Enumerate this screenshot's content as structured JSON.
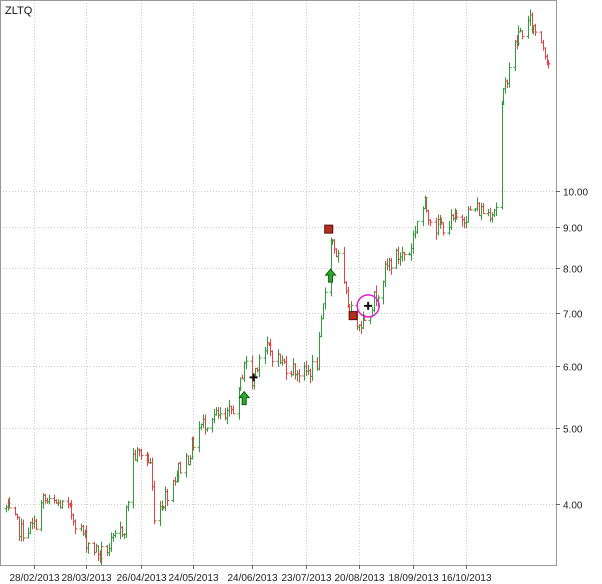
{
  "chart_data": {
    "type": "ohlc",
    "ticker": "ZLTQ",
    "y_scale": "log",
    "ylim": [
      3.35,
      17.5
    ],
    "y_ticks": [
      "4.00",
      "5.00",
      "6.00",
      "7.00",
      "8.00",
      "9.00",
      "10.00"
    ],
    "x_ticks": [
      "28/02/2013",
      "28/03/2013",
      "26/04/2013",
      "24/05/2013",
      "24/06/2013",
      "23/07/2013",
      "20/08/2013",
      "18/09/2013",
      "16/10/2013"
    ],
    "grid": true,
    "colors": {
      "up": "#2f9e3a",
      "down": "#e04444",
      "grid": "#cccccc",
      "highlight": "#e020c8"
    },
    "series": [
      {
        "date": "2013-02-13",
        "value": 3.95
      },
      {
        "date": "2013-02-21",
        "value": 3.7
      },
      {
        "date": "2013-02-28",
        "value": 3.75
      },
      {
        "date": "2013-03-05",
        "value": 4.05
      },
      {
        "date": "2013-03-08",
        "value": 4.0
      },
      {
        "date": "2013-03-14",
        "value": 4.0
      },
      {
        "date": "2013-03-20",
        "value": 3.9
      },
      {
        "date": "2013-03-25",
        "value": 3.7
      },
      {
        "date": "2013-03-28",
        "value": 3.6
      },
      {
        "date": "2013-04-04",
        "value": 3.45
      },
      {
        "date": "2013-04-10",
        "value": 3.55
      },
      {
        "date": "2013-04-17",
        "value": 3.75
      },
      {
        "date": "2013-04-22",
        "value": 4.6
      },
      {
        "date": "2013-04-26",
        "value": 4.65
      },
      {
        "date": "2013-05-01",
        "value": 4.5
      },
      {
        "date": "2013-05-03",
        "value": 3.9
      },
      {
        "date": "2013-05-08",
        "value": 4.05
      },
      {
        "date": "2013-05-15",
        "value": 4.4
      },
      {
        "date": "2013-05-21",
        "value": 4.6
      },
      {
        "date": "2013-05-27",
        "value": 5.0
      },
      {
        "date": "2013-06-03",
        "value": 5.2
      },
      {
        "date": "2013-06-10",
        "value": 5.1
      },
      {
        "date": "2013-06-17",
        "value": 5.5
      },
      {
        "date": "2013-06-20",
        "value": 6.1
      },
      {
        "date": "2013-06-24",
        "value": 5.7
      },
      {
        "date": "2013-06-28",
        "value": 6.2
      },
      {
        "date": "2013-07-03",
        "value": 6.3
      },
      {
        "date": "2013-07-10",
        "value": 6.05
      },
      {
        "date": "2013-07-16",
        "value": 5.95
      },
      {
        "date": "2013-07-22",
        "value": 5.85
      },
      {
        "date": "2013-07-29",
        "value": 6.05
      },
      {
        "date": "2013-08-05",
        "value": 8.8
      },
      {
        "date": "2013-08-09",
        "value": 8.2
      },
      {
        "date": "2013-08-13",
        "value": 7.3
      },
      {
        "date": "2013-08-17",
        "value": 6.9
      },
      {
        "date": "2013-08-21",
        "value": 6.85
      },
      {
        "date": "2013-08-26",
        "value": 7.1
      },
      {
        "date": "2013-08-30",
        "value": 7.5
      },
      {
        "date": "2013-09-05",
        "value": 8.1
      },
      {
        "date": "2013-09-11",
        "value": 8.3
      },
      {
        "date": "2013-09-16",
        "value": 8.35
      },
      {
        "date": "2013-09-20",
        "value": 9.2
      },
      {
        "date": "2013-09-24",
        "value": 9.6
      },
      {
        "date": "2013-09-30",
        "value": 9.0
      },
      {
        "date": "2013-10-07",
        "value": 9.1
      },
      {
        "date": "2013-10-14",
        "value": 9.3
      },
      {
        "date": "2013-10-21",
        "value": 9.5
      },
      {
        "date": "2013-10-28",
        "value": 9.4
      },
      {
        "date": "2013-11-01",
        "value": 9.6
      },
      {
        "date": "2013-11-04",
        "value": 12.8
      },
      {
        "date": "2013-11-08",
        "value": 14.5
      },
      {
        "date": "2013-11-13",
        "value": 15.8
      },
      {
        "date": "2013-11-19",
        "value": 16.4
      },
      {
        "date": "2013-11-25",
        "value": 15.6
      },
      {
        "date": "2013-11-29",
        "value": 14.6
      }
    ],
    "markers": [
      {
        "type": "buy-arrow",
        "date": "2013-06-20",
        "value": 5.45
      },
      {
        "type": "signal-cross",
        "date": "2013-06-25",
        "value": 5.8
      },
      {
        "type": "sell-marker",
        "date": "2013-08-04",
        "value": 8.95
      },
      {
        "type": "buy-arrow",
        "date": "2013-08-05",
        "value": 7.8
      },
      {
        "type": "sell-marker",
        "date": "2013-08-17",
        "value": 6.95
      },
      {
        "type": "signal-cross",
        "date": "2013-08-25",
        "value": 7.15
      }
    ],
    "highlight": {
      "date": "2013-08-25",
      "value": 7.15
    }
  }
}
